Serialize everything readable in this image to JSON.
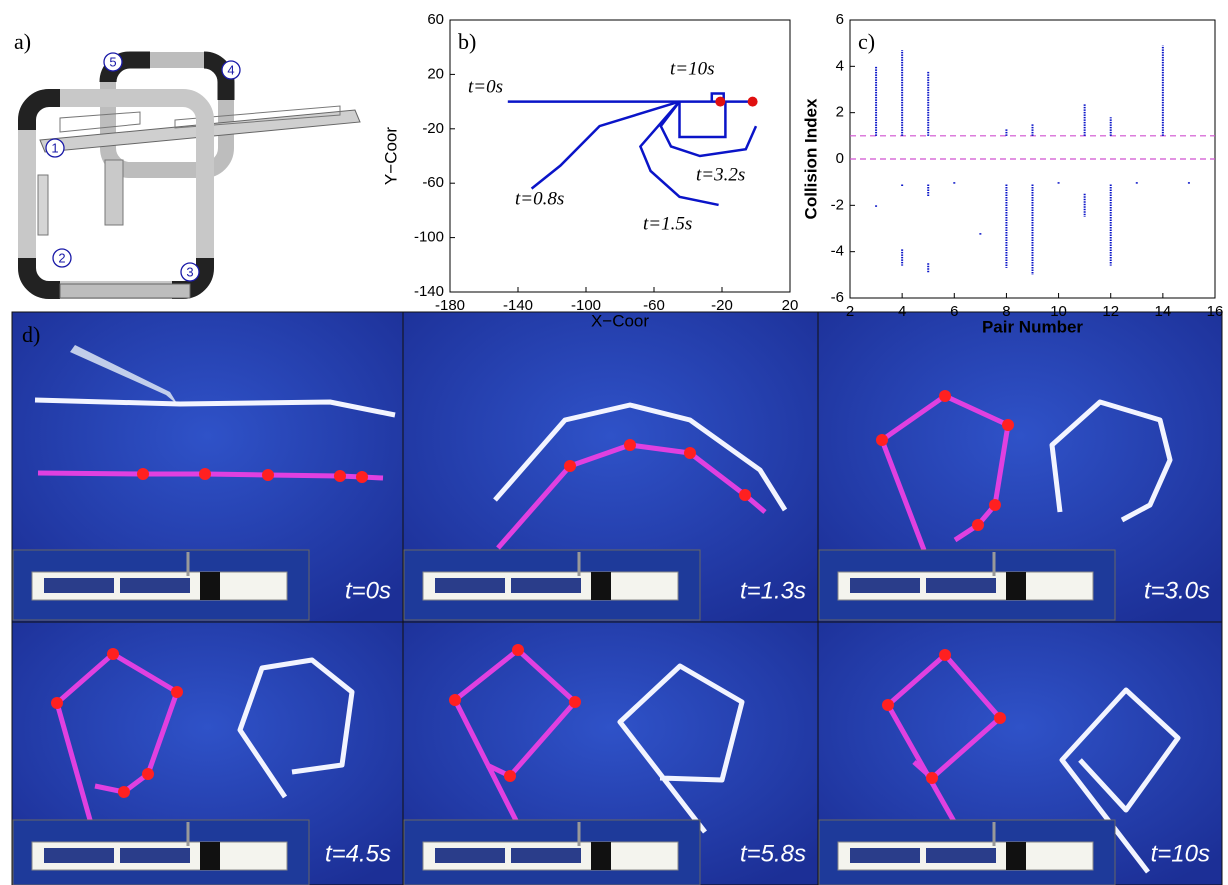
{
  "panels": {
    "a": {
      "label": "a)",
      "numbers": [
        "1",
        "2",
        "3",
        "4",
        "5"
      ]
    },
    "d": {
      "label": "d)",
      "captions": [
        "t=0s",
        "t=1.3s",
        "t=3.0s",
        "t=4.5s",
        "t=5.8s",
        "t=10s"
      ]
    }
  },
  "chart_data": [
    {
      "type": "line",
      "label": "b)",
      "xlabel": "X−Coor",
      "ylabel": "Y−Coor",
      "xlim": [
        -180,
        20
      ],
      "ylim": [
        -140,
        60
      ],
      "xticks": [
        -180,
        -140,
        -100,
        -60,
        -20,
        20
      ],
      "yticks": [
        -140,
        -100,
        -60,
        -20,
        20,
        60
      ],
      "series": [
        {
          "color": "#0a14c8",
          "x": [
            -146,
            -2
          ],
          "y": [
            0,
            0
          ]
        },
        {
          "color": "#0a14c8",
          "x": [
            -45,
            -45,
            -18,
            -18
          ],
          "y": [
            0,
            -26,
            -26,
            0
          ]
        },
        {
          "color": "#0a14c8",
          "x": [
            -26,
            -26,
            -19,
            -19
          ],
          "y": [
            0,
            6,
            6,
            0
          ]
        },
        {
          "color": "#0a14c8",
          "x": [
            -45,
            -92,
            -115,
            -132
          ],
          "y": [
            0,
            -18,
            -47,
            -64
          ]
        },
        {
          "color": "#0a14c8",
          "x": [
            -45,
            -68,
            -62,
            -45,
            -22
          ],
          "y": [
            0,
            -33,
            -51,
            -70,
            -76
          ]
        },
        {
          "color": "#0a14c8",
          "x": [
            -45,
            -56,
            -50,
            -33,
            -6,
            0
          ],
          "y": [
            0,
            -18,
            -33,
            -40,
            -35,
            -18
          ]
        }
      ],
      "markers": {
        "color": "#e01010",
        "x": [
          -21,
          -2
        ],
        "y": [
          0,
          0
        ]
      },
      "annotations": [
        "t=0s",
        "t=10s",
        "t=0.8s",
        "t=1.5s",
        "t=3.2s"
      ]
    },
    {
      "type": "stem",
      "label": "c)",
      "xlabel": "Pair Number",
      "ylabel": "Collision Index",
      "xlim": [
        2,
        16
      ],
      "ylim": [
        -6,
        6
      ],
      "xticks": [
        2,
        4,
        6,
        8,
        10,
        12,
        14,
        16
      ],
      "yticks": [
        -6,
        -4,
        -2,
        0,
        2,
        4,
        6
      ],
      "color": "#0a14c8",
      "x": [
        3,
        3,
        4,
        4,
        4,
        5,
        5,
        5,
        6,
        7,
        8,
        8,
        9,
        9,
        10,
        11,
        11,
        12,
        12,
        13,
        14,
        15
      ],
      "y1": [
        1,
        -2,
        1,
        -1.1,
        -3.9,
        1,
        -1.1,
        -4.5,
        -1,
        -3.2,
        1,
        -1.1,
        1,
        -1.1,
        -1,
        1,
        -1.5,
        1,
        -1.1,
        -1,
        1,
        -1
      ],
      "y2": [
        4,
        -2,
        4.7,
        -1.1,
        -4.6,
        3.8,
        -1.6,
        -4.9,
        -1,
        -3.2,
        1.3,
        -4.7,
        1.5,
        -5,
        -1,
        2.4,
        -2.5,
        1.8,
        -4.6,
        -1,
        4.9,
        -1
      ],
      "reference_lines": [
        1,
        0
      ],
      "reference_color": "#d050d0"
    }
  ]
}
